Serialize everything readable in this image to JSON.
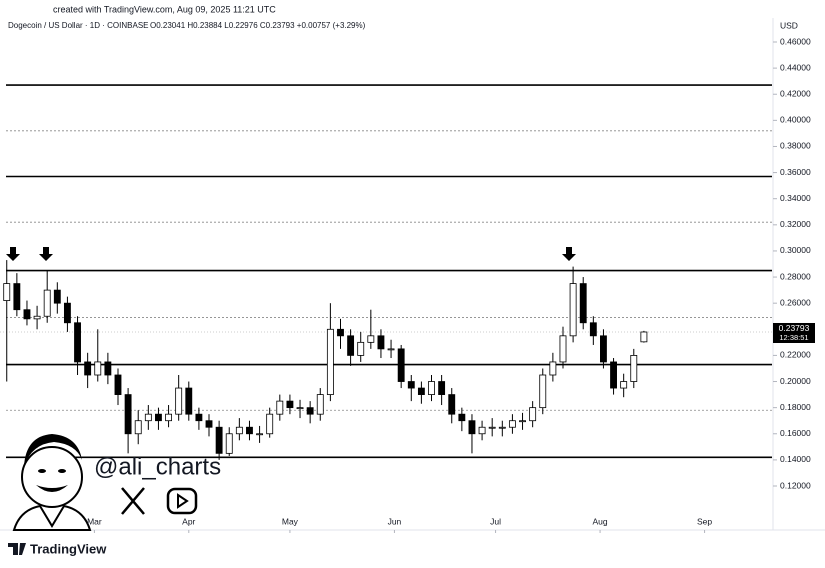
{
  "header": {
    "created": "created with TradingView.com, Aug 09, 2025 11:21 UTC",
    "symbol": "Dogecoin / US Dollar · 1D · COINBASE",
    "ohlc": "O0.23041 H0.23884 L0.22976 C0.23793 +0.00757 (+3.29%)",
    "currency": "USD",
    "countdown": "12:38:51",
    "handle": "@ali_charts",
    "brand": "TradingView"
  },
  "chart_data": {
    "type": "candlestick",
    "x": [
      0,
      3,
      6,
      9,
      12,
      15,
      18,
      21,
      24,
      27,
      30,
      33,
      36,
      39,
      42,
      45,
      48,
      51,
      54,
      57,
      60,
      63,
      66,
      69,
      72,
      75,
      78,
      81,
      84,
      87,
      90,
      93,
      96,
      99,
      102,
      105,
      108,
      111,
      114,
      117,
      120,
      123,
      126,
      129,
      132,
      135,
      138,
      141,
      144,
      147,
      150,
      153,
      156,
      159,
      162,
      165,
      168,
      171,
      174,
      177,
      180,
      183,
      186,
      189
    ],
    "open": [
      0.262,
      0.275,
      0.255,
      0.248,
      0.25,
      0.27,
      0.26,
      0.245,
      0.215,
      0.205,
      0.215,
      0.205,
      0.19,
      0.16,
      0.17,
      0.175,
      0.17,
      0.175,
      0.195,
      0.175,
      0.17,
      0.165,
      0.145,
      0.16,
      0.165,
      0.16,
      0.16,
      0.175,
      0.185,
      0.18,
      0.18,
      0.175,
      0.19,
      0.24,
      0.235,
      0.22,
      0.23,
      0.235,
      0.225,
      0.225,
      0.2,
      0.195,
      0.19,
      0.2,
      0.19,
      0.175,
      0.17,
      0.16,
      0.165,
      0.165,
      0.165,
      0.17,
      0.17,
      0.18,
      0.205,
      0.215,
      0.235,
      0.275,
      0.245,
      0.235,
      0.215,
      0.195,
      0.2,
      0.2304
    ],
    "high": [
      0.293,
      0.283,
      0.262,
      0.258,
      0.285,
      0.276,
      0.265,
      0.25,
      0.222,
      0.24,
      0.222,
      0.21,
      0.195,
      0.178,
      0.182,
      0.18,
      0.182,
      0.205,
      0.2,
      0.18,
      0.175,
      0.17,
      0.165,
      0.172,
      0.17,
      0.166,
      0.18,
      0.19,
      0.19,
      0.186,
      0.185,
      0.195,
      0.26,
      0.248,
      0.24,
      0.238,
      0.255,
      0.24,
      0.232,
      0.228,
      0.205,
      0.2,
      0.205,
      0.205,
      0.195,
      0.18,
      0.175,
      0.17,
      0.172,
      0.17,
      0.175,
      0.176,
      0.185,
      0.21,
      0.222,
      0.242,
      0.288,
      0.28,
      0.25,
      0.24,
      0.218,
      0.206,
      0.225,
      0.2388
    ],
    "low": [
      0.2,
      0.25,
      0.243,
      0.24,
      0.245,
      0.252,
      0.238,
      0.205,
      0.195,
      0.2,
      0.198,
      0.182,
      0.145,
      0.152,
      0.163,
      0.163,
      0.165,
      0.17,
      0.17,
      0.163,
      0.158,
      0.14,
      0.143,
      0.155,
      0.155,
      0.153,
      0.157,
      0.17,
      0.175,
      0.172,
      0.168,
      0.17,
      0.185,
      0.225,
      0.212,
      0.215,
      0.225,
      0.218,
      0.218,
      0.195,
      0.185,
      0.183,
      0.185,
      0.182,
      0.168,
      0.162,
      0.145,
      0.155,
      0.158,
      0.158,
      0.16,
      0.163,
      0.165,
      0.175,
      0.2,
      0.21,
      0.23,
      0.24,
      0.228,
      0.21,
      0.19,
      0.188,
      0.195,
      0.2298
    ],
    "close": [
      0.275,
      0.255,
      0.248,
      0.25,
      0.27,
      0.26,
      0.245,
      0.215,
      0.205,
      0.215,
      0.205,
      0.19,
      0.16,
      0.17,
      0.175,
      0.17,
      0.175,
      0.195,
      0.175,
      0.17,
      0.165,
      0.145,
      0.16,
      0.165,
      0.16,
      0.16,
      0.175,
      0.185,
      0.18,
      0.18,
      0.175,
      0.19,
      0.24,
      0.235,
      0.22,
      0.23,
      0.235,
      0.225,
      0.225,
      0.2,
      0.195,
      0.19,
      0.2,
      0.19,
      0.175,
      0.17,
      0.16,
      0.165,
      0.165,
      0.165,
      0.17,
      0.17,
      0.18,
      0.205,
      0.215,
      0.235,
      0.275,
      0.245,
      0.235,
      0.215,
      0.195,
      0.2,
      0.22,
      0.23793
    ],
    "last_price": 0.23793,
    "levels": [
      {
        "value": 0.427,
        "style": "solid"
      },
      {
        "value": 0.392,
        "style": "dotted"
      },
      {
        "value": 0.357,
        "style": "solid"
      },
      {
        "value": 0.322,
        "style": "dotted"
      },
      {
        "value": 0.285,
        "style": "solid"
      },
      {
        "value": 0.249,
        "style": "dotted"
      },
      {
        "value": 0.213,
        "style": "solid"
      },
      {
        "value": 0.178,
        "style": "dotted"
      },
      {
        "value": 0.142,
        "style": "solid"
      }
    ],
    "xlim": [
      -2,
      227
    ],
    "xticks": [
      {
        "value": 26,
        "label": "Mar"
      },
      {
        "value": 54,
        "label": "Apr"
      },
      {
        "value": 84,
        "label": "May"
      },
      {
        "value": 115,
        "label": "Jun"
      },
      {
        "value": 145,
        "label": "Jul"
      },
      {
        "value": 176,
        "label": "Aug"
      },
      {
        "value": 207,
        "label": "Sep"
      }
    ],
    "ylim": [
      0.12,
      0.46
    ],
    "yticks": [
      {
        "value": 0.12,
        "label": "0.12000"
      },
      {
        "value": 0.14,
        "label": "0.14000"
      },
      {
        "value": 0.16,
        "label": "0.16000"
      },
      {
        "value": 0.18,
        "label": "0.18000"
      },
      {
        "value": 0.2,
        "label": "0.20000"
      },
      {
        "value": 0.22,
        "label": "0.22000"
      },
      {
        "value": 0.24,
        "label": "0.24000"
      },
      {
        "value": 0.26,
        "label": "0.26000"
      },
      {
        "value": 0.28,
        "label": "0.28000"
      },
      {
        "value": 0.3,
        "label": "0.30000"
      },
      {
        "value": 0.32,
        "label": "0.32000"
      },
      {
        "value": 0.34,
        "label": "0.34000"
      },
      {
        "value": 0.36,
        "label": "0.36000"
      },
      {
        "value": 0.38,
        "label": "0.38000"
      },
      {
        "value": 0.4,
        "label": "0.40000"
      },
      {
        "value": 0.42,
        "label": "0.42000"
      },
      {
        "value": 0.44,
        "label": "0.44000"
      },
      {
        "value": 0.46,
        "label": "0.46000"
      }
    ],
    "up_color": "#ffffff",
    "down_color": "#000000",
    "edge_color": "#000000"
  }
}
